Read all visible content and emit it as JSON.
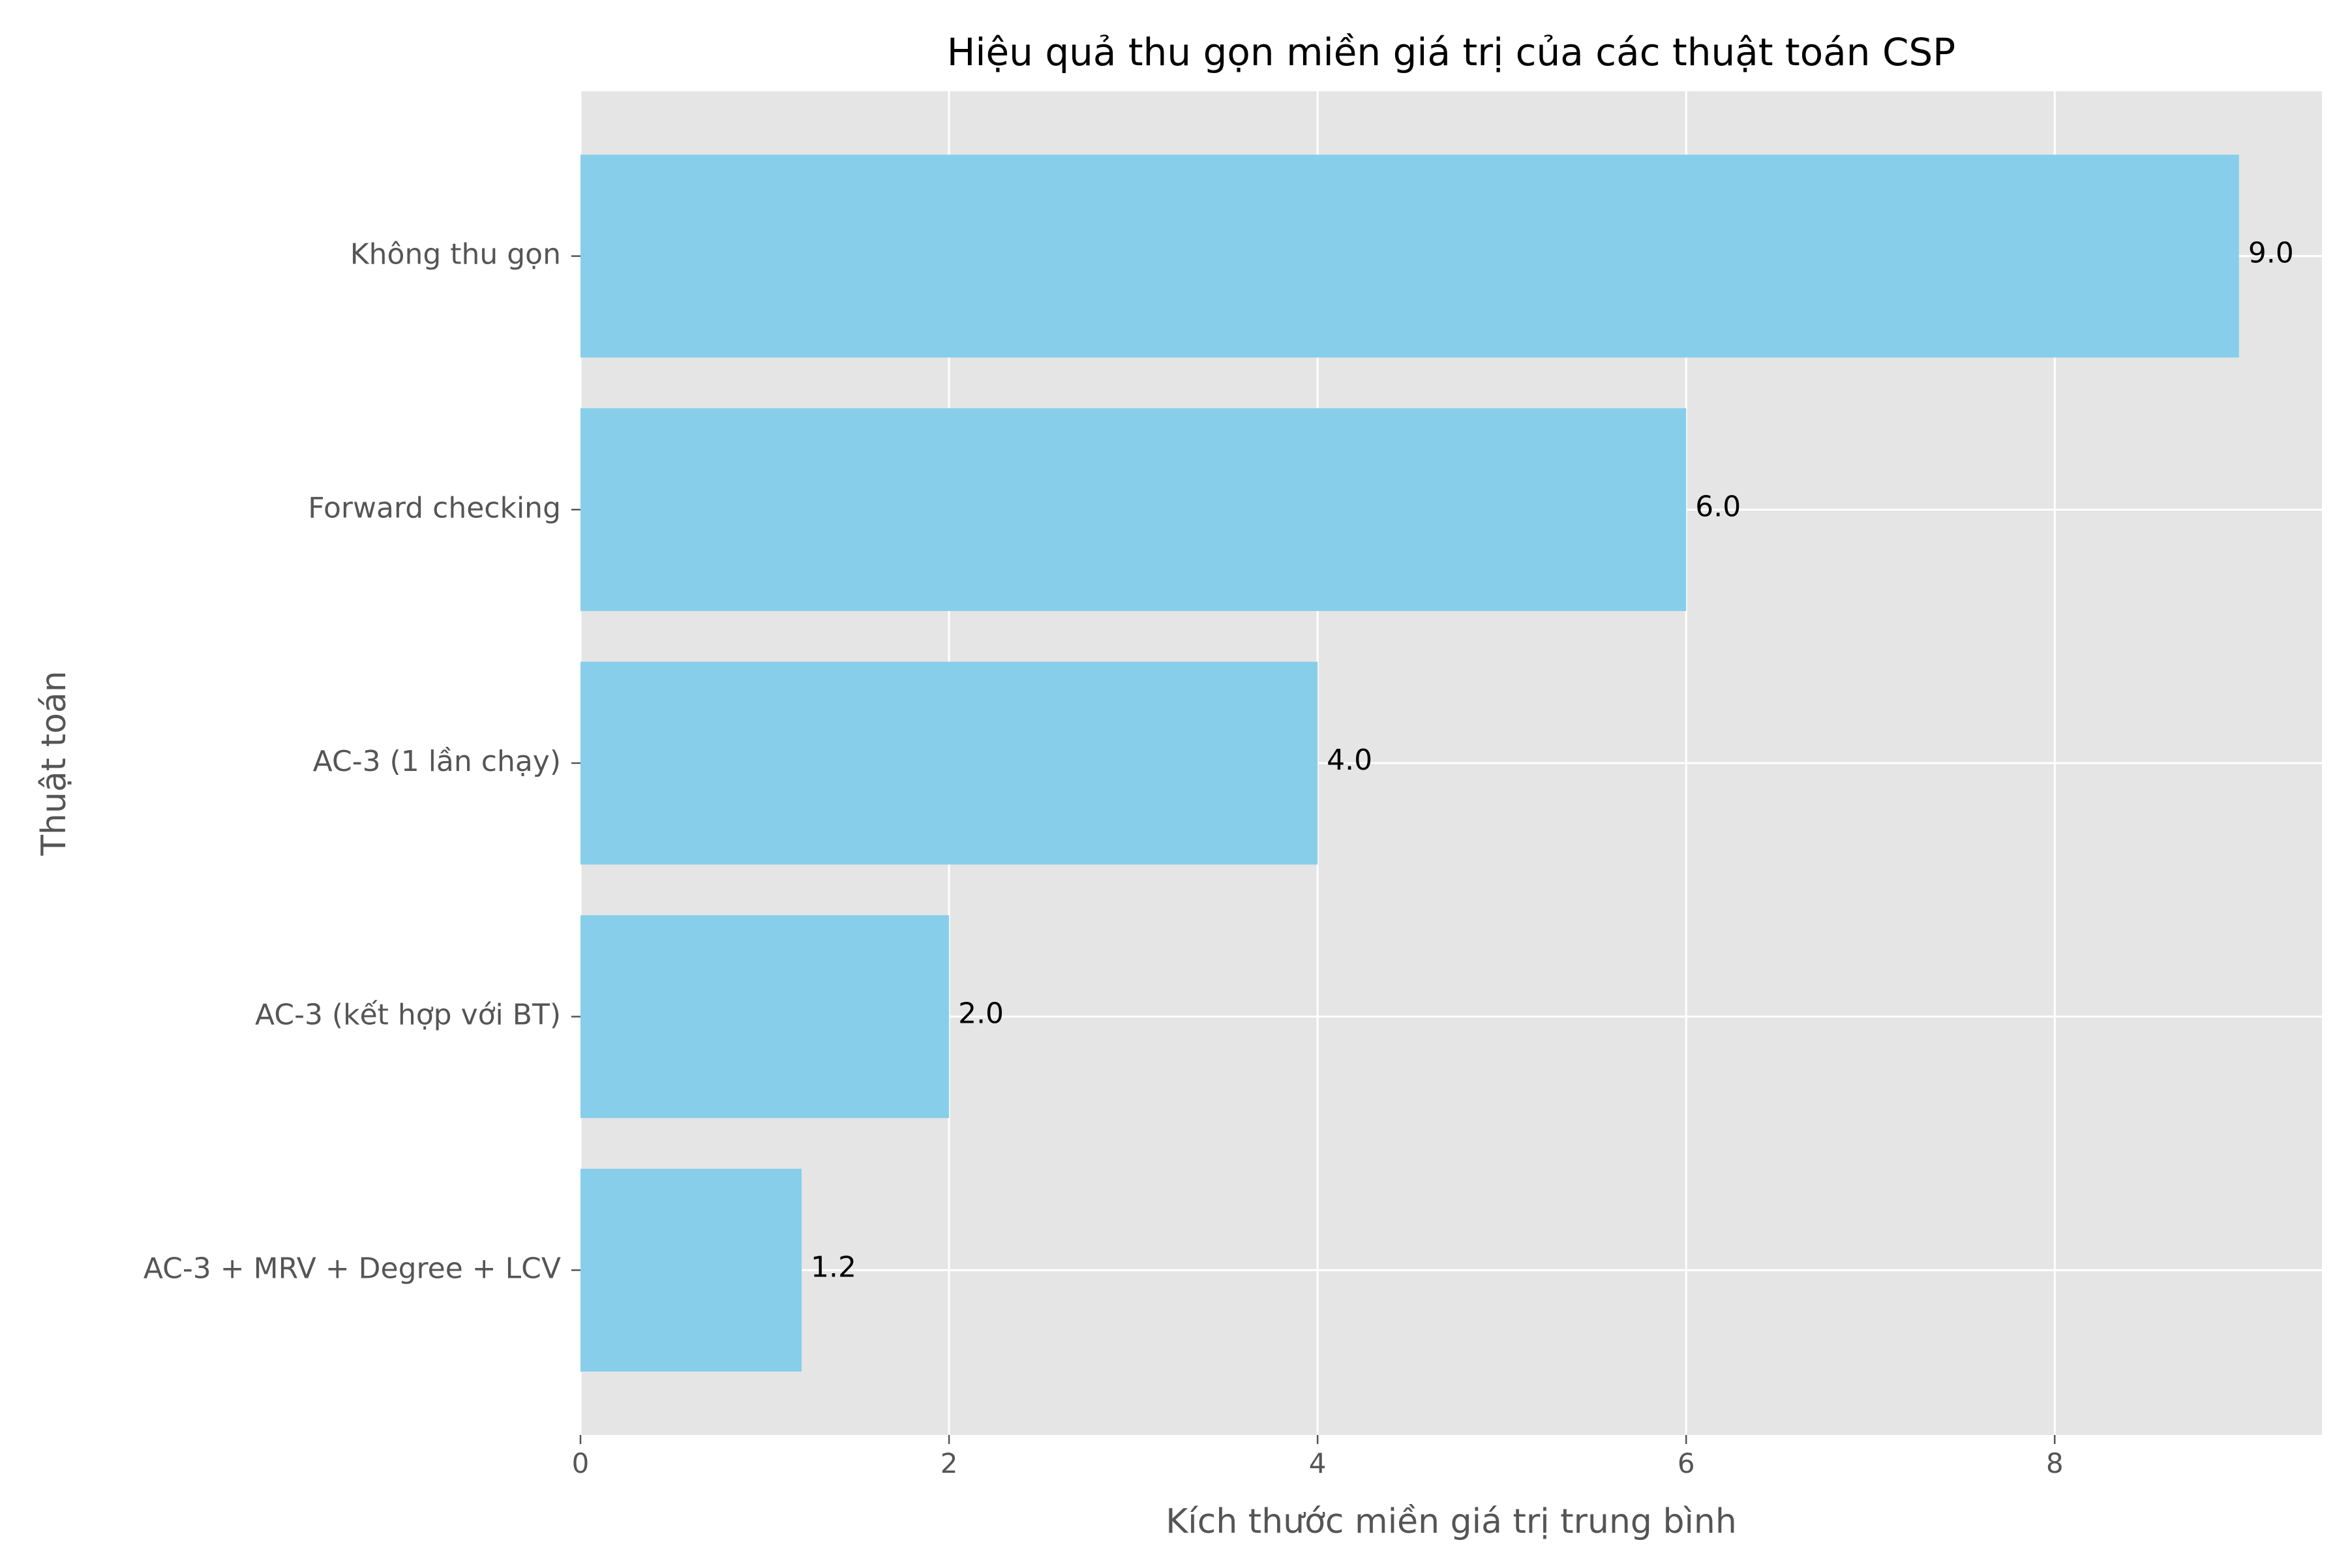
{
  "chart_data": {
    "type": "bar",
    "orientation": "horizontal",
    "title": "Hiệu quả thu gọn miền giá trị của các thuật toán CSP",
    "xlabel": "Kích thước miền giá trị trung bình",
    "ylabel": "Thuật toán",
    "categories": [
      "Không thu gọn",
      "Forward checking",
      "AC-3 (1 lần chạy)",
      "AC-3 (kết hợp với BT)",
      "AC-3 + MRV + Degree + LCV"
    ],
    "values": [
      9.0,
      6.0,
      4.0,
      2.0,
      1.2
    ],
    "value_labels": [
      "9.0",
      "6.0",
      "4.0",
      "2.0",
      "1.2"
    ],
    "xlim": [
      0,
      9.45
    ],
    "xticks": [
      0,
      2,
      4,
      6,
      8
    ],
    "xtick_labels": [
      "0",
      "2",
      "4",
      "6",
      "8"
    ],
    "grid": true,
    "colors": {
      "bar": "#87CEEB",
      "plot_background": "#E5E5E5",
      "grid": "#FFFFFF",
      "tick_label": "#555555",
      "axis_label": "#555555",
      "title": "#000000",
      "value_label": "#000000"
    }
  }
}
